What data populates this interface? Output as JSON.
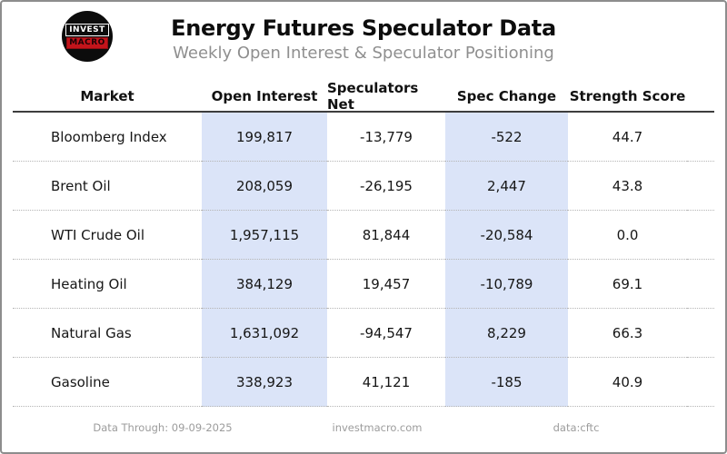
{
  "header": {
    "title": "Energy Futures Speculator Data",
    "subtitle": "Weekly Open Interest & Speculator Positioning",
    "logo_line1": "INVEST",
    "logo_line2": "MACRO"
  },
  "table": {
    "columns": {
      "market": "Market",
      "open_interest": "Open Interest",
      "speculators_net": "Speculators Net",
      "spec_change": "Spec Change",
      "strength_score": "Strength Score"
    },
    "rows": [
      {
        "market": "Bloomberg Index",
        "open_interest": "199,817",
        "speculators_net": "-13,779",
        "spec_change": "-522",
        "strength_score": "44.7"
      },
      {
        "market": "Brent Oil",
        "open_interest": "208,059",
        "speculators_net": "-26,195",
        "spec_change": "2,447",
        "strength_score": "43.8"
      },
      {
        "market": "WTI Crude Oil",
        "open_interest": "1,957,115",
        "speculators_net": "81,844",
        "spec_change": "-20,584",
        "strength_score": "0.0"
      },
      {
        "market": "Heating Oil",
        "open_interest": "384,129",
        "speculators_net": "19,457",
        "spec_change": "-10,789",
        "strength_score": "69.1"
      },
      {
        "market": "Natural Gas",
        "open_interest": "1,631,092",
        "speculators_net": "-94,547",
        "spec_change": "8,229",
        "strength_score": "66.3"
      },
      {
        "market": "Gasoline",
        "open_interest": "338,923",
        "speculators_net": "41,121",
        "spec_change": "-185",
        "strength_score": "40.9"
      }
    ]
  },
  "footer": {
    "data_through": "Data Through: 09-09-2025",
    "website": "investmacro.com",
    "source": "data:cftc"
  },
  "colors": {
    "highlight": "#dbe4f8",
    "logo_red": "#c3141b",
    "border_gray": "#8d8d8d",
    "subtitle_gray": "#8f8f8f",
    "footer_gray": "#9c9c9c"
  },
  "chart_data": {
    "type": "table",
    "title": "Energy Futures Speculator Data",
    "subtitle": "Weekly Open Interest & Speculator Positioning",
    "columns": [
      "Market",
      "Open Interest",
      "Speculators Net",
      "Spec Change",
      "Strength Score"
    ],
    "rows": [
      [
        "Bloomberg Index",
        199817,
        -13779,
        -522,
        44.7
      ],
      [
        "Brent Oil",
        208059,
        -26195,
        2447,
        43.8
      ],
      [
        "WTI Crude Oil",
        1957115,
        81844,
        -20584,
        0.0
      ],
      [
        "Heating Oil",
        384129,
        19457,
        -10789,
        69.1
      ],
      [
        "Natural Gas",
        1631092,
        -94547,
        8229,
        66.3
      ],
      [
        "Gasoline",
        338923,
        41121,
        -185,
        40.9
      ]
    ],
    "highlighted_columns": [
      "Open Interest",
      "Spec Change"
    ],
    "source": "cftc",
    "data_through": "09-09-2025"
  }
}
